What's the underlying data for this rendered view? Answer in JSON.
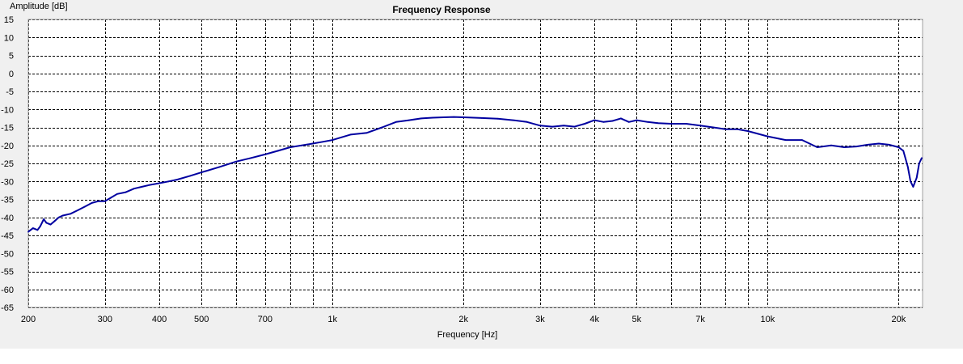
{
  "chart_data": {
    "type": "line",
    "title": "Frequency Response",
    "xlabel": "Frequency [Hz]",
    "ylabel": "Amplitude [dB]",
    "x_scale": "log",
    "xlim": [
      200,
      22700
    ],
    "ylim": [
      -65,
      15
    ],
    "grid": true,
    "y_ticks": [
      15,
      10,
      5,
      0,
      -5,
      -10,
      -15,
      -20,
      -25,
      -30,
      -35,
      -40,
      -45,
      -50,
      -55,
      -60,
      -65
    ],
    "x_ticks": [
      {
        "value": 200,
        "label": "200"
      },
      {
        "value": 300,
        "label": "300"
      },
      {
        "value": 400,
        "label": "400"
      },
      {
        "value": 500,
        "label": "500"
      },
      {
        "value": 700,
        "label": "700"
      },
      {
        "value": 1000,
        "label": "1k"
      },
      {
        "value": 2000,
        "label": "2k"
      },
      {
        "value": 3000,
        "label": "3k"
      },
      {
        "value": 4000,
        "label": "4k"
      },
      {
        "value": 5000,
        "label": "5k"
      },
      {
        "value": 7000,
        "label": "7k"
      },
      {
        "value": 10000,
        "label": "10k"
      },
      {
        "value": 20000,
        "label": "20k"
      }
    ],
    "x_minor_gridlines": [
      600,
      800,
      900,
      6000,
      8000,
      9000
    ],
    "series": [
      {
        "color": "#0000a0",
        "x": [
          200,
          205,
          210,
          213,
          217,
          220,
          225,
          230,
          235,
          240,
          250,
          260,
          270,
          280,
          290,
          300,
          310,
          320,
          335,
          350,
          365,
          380,
          400,
          420,
          440,
          470,
          500,
          550,
          600,
          650,
          700,
          750,
          800,
          850,
          900,
          950,
          1000,
          1100,
          1200,
          1300,
          1400,
          1500,
          1600,
          1700,
          1800,
          1900,
          2000,
          2200,
          2400,
          2600,
          2800,
          3000,
          3200,
          3400,
          3600,
          3800,
          4000,
          4200,
          4400,
          4600,
          4800,
          5000,
          5300,
          5600,
          6000,
          6500,
          7000,
          7500,
          8000,
          8500,
          9000,
          10000,
          11000,
          12000,
          13000,
          14000,
          15000,
          16000,
          17000,
          18000,
          19000,
          20000,
          20500,
          21000,
          21300,
          21600,
          22000,
          22300,
          22600
        ],
        "y": [
          -44,
          -43,
          -43.5,
          -42.5,
          -40.5,
          -41.5,
          -42,
          -41,
          -40,
          -39.5,
          -39,
          -38,
          -37,
          -36,
          -35.5,
          -35.5,
          -34.5,
          -33.5,
          -33,
          -32,
          -31.5,
          -31,
          -30.5,
          -30,
          -29.5,
          -28.5,
          -27.5,
          -26,
          -24.5,
          -23.5,
          -22.5,
          -21.5,
          -20.5,
          -20,
          -19.5,
          -19,
          -18.5,
          -17,
          -16.5,
          -15,
          -13.5,
          -13,
          -12.5,
          -12.3,
          -12.2,
          -12.1,
          -12.2,
          -12.4,
          -12.6,
          -13,
          -13.5,
          -14.5,
          -14.8,
          -14.5,
          -14.8,
          -14,
          -13,
          -13.5,
          -13.2,
          -12.5,
          -13.5,
          -13,
          -13.5,
          -13.8,
          -14,
          -14,
          -14.5,
          -15,
          -15.5,
          -15.5,
          -16,
          -17.5,
          -18.5,
          -18.5,
          -20.5,
          -20,
          -20.5,
          -20.3,
          -19.8,
          -19.5,
          -19.8,
          -20.5,
          -21.5,
          -26,
          -30,
          -31.5,
          -29,
          -25,
          -23.5
        ]
      }
    ]
  }
}
